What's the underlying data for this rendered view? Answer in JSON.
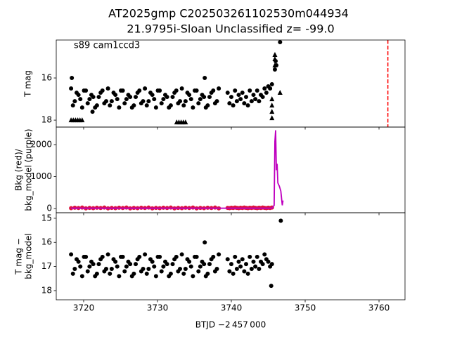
{
  "chart_data": [
    {
      "type": "scatter",
      "title": "AT2025gmp  C202503261102530m044934",
      "subtitle": "21.9795i-Sloan Unclassified z= -99.0",
      "annotation": "s89 cam1ccd3",
      "ylabel": [
        "T mag"
      ],
      "xlim": [
        3716.29,
        3763.52
      ],
      "xticks": [
        3720,
        3730,
        3740,
        3750,
        3760
      ],
      "ylim": [
        18.33,
        14.2
      ],
      "yticks": [
        16,
        18
      ],
      "vline": {
        "x": 3761.2,
        "color": "#ff0000"
      },
      "series": [
        {
          "type": "scatter",
          "marker": "circle",
          "color": "#000000",
          "x": [
            3718.3,
            3718.8,
            3719.3,
            3719.8,
            3720.3,
            3720.8,
            3721.3,
            3721.8,
            3722.3,
            3722.8,
            3723.3,
            3723.8,
            3724.3,
            3724.8,
            3725.3,
            3725.8,
            3726.3,
            3726.8,
            3727.3,
            3727.8,
            3728.3,
            3728.8,
            3729.3,
            3729.8,
            3730.3,
            3730.8,
            3731.3,
            3731.8,
            3732.3,
            3732.8,
            3733.3,
            3733.8,
            3734.3,
            3734.8,
            3735.3,
            3735.8,
            3736.3,
            3736.8,
            3737.3,
            3737.8,
            3738.3,
            3718.55,
            3719.05,
            3719.55,
            3720.05,
            3720.55,
            3721.05,
            3721.55,
            3722.05,
            3722.55,
            3723.05,
            3723.55,
            3724.05,
            3724.55,
            3725.05,
            3725.55,
            3726.05,
            3726.55,
            3727.05,
            3727.55,
            3728.05,
            3728.55,
            3729.05,
            3729.55,
            3730.05,
            3730.55,
            3731.05,
            3731.55,
            3732.05,
            3732.55,
            3733.05,
            3733.55,
            3734.05,
            3734.55,
            3735.05,
            3735.55,
            3736.05,
            3736.55,
            3737.05,
            3737.55,
            3738.05,
            3739.5,
            3739.75,
            3740.0,
            3740.25,
            3740.5,
            3740.75,
            3741.0,
            3741.25,
            3741.5,
            3741.75,
            3742.0,
            3742.25,
            3742.5,
            3742.75,
            3743.0,
            3743.25,
            3743.5,
            3743.75,
            3744.0,
            3744.25,
            3744.5,
            3744.75,
            3745.0,
            3745.25,
            3745.5,
            3718.4,
            3721.2,
            3736.4,
            3745.9,
            3746.0,
            3746.1,
            3746.6
          ],
          "values": [
            16.5,
            17.1,
            16.8,
            17.4,
            16.6,
            17.0,
            16.9,
            17.3,
            16.7,
            17.2,
            16.5,
            17.1,
            16.8,
            17.4,
            16.6,
            17.0,
            16.9,
            17.3,
            16.7,
            17.2,
            16.5,
            17.1,
            16.8,
            17.4,
            16.6,
            17.0,
            16.9,
            17.3,
            16.7,
            17.2,
            16.5,
            17.1,
            16.8,
            17.4,
            16.6,
            17.0,
            16.9,
            17.3,
            16.7,
            17.2,
            16.5,
            17.3,
            16.7,
            17.0,
            16.6,
            17.2,
            16.8,
            17.4,
            16.9,
            16.6,
            17.1,
            17.3,
            16.7,
            17.0,
            16.6,
            17.2,
            16.8,
            17.4,
            16.9,
            16.6,
            17.1,
            17.3,
            16.7,
            17.0,
            16.6,
            17.2,
            16.8,
            17.4,
            16.9,
            16.6,
            17.1,
            17.3,
            16.7,
            17.0,
            16.6,
            17.2,
            16.8,
            17.4,
            16.9,
            16.6,
            17.1,
            16.7,
            17.2,
            16.9,
            17.3,
            16.6,
            17.1,
            16.8,
            17.0,
            16.7,
            17.2,
            16.9,
            17.3,
            16.6,
            17.1,
            16.8,
            17.0,
            16.6,
            17.1,
            16.8,
            16.9,
            16.5,
            16.7,
            16.4,
            16.5,
            16.3,
            16.0,
            17.6,
            16.0,
            15.6,
            15.2,
            15.4,
            14.3
          ]
        },
        {
          "type": "scatter",
          "marker": "triangle",
          "color": "#000000",
          "x": [
            3718.3,
            3718.6,
            3718.9,
            3719.2,
            3719.5,
            3719.8,
            3732.6,
            3732.9,
            3733.2,
            3733.5,
            3733.8,
            3745.5,
            3745.5,
            3745.5,
            3745.5,
            3745.9,
            3745.9,
            3745.9,
            3746.6
          ],
          "values": [
            18.0,
            18.0,
            18.0,
            18.0,
            18.0,
            18.0,
            18.1,
            18.1,
            18.1,
            18.1,
            18.1,
            17.9,
            17.6,
            17.3,
            17.0,
            15.4,
            15.1,
            14.9,
            16.7
          ]
        }
      ]
    },
    {
      "type": "scatter",
      "ylabel": [
        "Bkg (red)/",
        "bkg_model (purple)"
      ],
      "xlim": [
        3716.29,
        3763.52
      ],
      "xticks": [
        3720,
        3730,
        3740,
        3750,
        3760
      ],
      "ylim": [
        -132,
        2549
      ],
      "yticks": [
        0,
        1000,
        2000
      ],
      "series": [
        {
          "type": "scatter",
          "marker": "circle",
          "color": "#dc143c",
          "x": [
            3718.3,
            3718.8,
            3719.3,
            3719.8,
            3720.3,
            3720.8,
            3721.3,
            3721.8,
            3722.3,
            3722.8,
            3723.3,
            3723.8,
            3724.3,
            3724.8,
            3725.3,
            3725.8,
            3726.3,
            3726.8,
            3727.3,
            3727.8,
            3728.3,
            3728.8,
            3729.3,
            3729.8,
            3730.3,
            3730.8,
            3731.3,
            3731.8,
            3732.3,
            3732.8,
            3733.3,
            3733.8,
            3734.3,
            3734.8,
            3735.3,
            3735.8,
            3736.3,
            3736.8,
            3737.3,
            3737.8,
            3738.3,
            3739.5,
            3739.75,
            3740.0,
            3740.25,
            3740.5,
            3740.75,
            3741.0,
            3741.25,
            3741.5,
            3741.75,
            3742.0,
            3742.25,
            3742.5,
            3742.75,
            3743.0,
            3743.25,
            3743.5,
            3743.75,
            3744.0,
            3744.25,
            3744.5,
            3744.75,
            3745.0,
            3745.25,
            3745.5
          ],
          "values": [
            10,
            25,
            15,
            30,
            5,
            20,
            10,
            25,
            15,
            30,
            5,
            20,
            10,
            25,
            15,
            30,
            5,
            20,
            10,
            25,
            15,
            30,
            5,
            20,
            10,
            25,
            15,
            30,
            5,
            20,
            10,
            25,
            15,
            30,
            5,
            20,
            10,
            25,
            15,
            30,
            5,
            20,
            10,
            25,
            15,
            30,
            20,
            10,
            25,
            15,
            30,
            20,
            10,
            25,
            15,
            30,
            20,
            10,
            25,
            15,
            30,
            20,
            10,
            25,
            15,
            30
          ]
        },
        {
          "type": "line",
          "color": "#bf00bf",
          "x": [
            3718.3,
            3738.3,
            3739.5,
            3745.5,
            3745.8,
            3745.9,
            3746.0,
            3746.1,
            3746.2,
            3746.3,
            3746.5,
            3746.7,
            3746.9,
            3747.0
          ],
          "values": [
            10,
            10,
            10,
            10,
            100,
            2100,
            2450,
            1200,
            1400,
            800,
            700,
            550,
            100,
            250
          ]
        }
      ]
    },
    {
      "type": "scatter",
      "ylabel": [
        "T mag −",
        "bkg_model"
      ],
      "xlabel": "BTJD −2 457 000",
      "xlim": [
        3716.29,
        3763.52
      ],
      "xticks": [
        3720,
        3730,
        3740,
        3750,
        3760
      ],
      "ylim": [
        18.38,
        14.77
      ],
      "yticks": [
        15,
        16,
        17,
        18
      ],
      "series": [
        {
          "type": "scatter",
          "marker": "circle",
          "color": "#000000",
          "x": [
            3718.3,
            3718.8,
            3719.3,
            3719.8,
            3720.3,
            3720.8,
            3721.3,
            3721.8,
            3722.3,
            3722.8,
            3723.3,
            3723.8,
            3724.3,
            3724.8,
            3725.3,
            3725.8,
            3726.3,
            3726.8,
            3727.3,
            3727.8,
            3728.3,
            3728.8,
            3729.3,
            3729.8,
            3730.3,
            3730.8,
            3731.3,
            3731.8,
            3732.3,
            3732.8,
            3733.3,
            3733.8,
            3734.3,
            3734.8,
            3735.3,
            3735.8,
            3736.3,
            3736.8,
            3737.3,
            3737.8,
            3738.3,
            3718.55,
            3719.05,
            3719.55,
            3720.05,
            3720.55,
            3721.05,
            3721.55,
            3722.05,
            3722.55,
            3723.05,
            3723.55,
            3724.05,
            3724.55,
            3725.05,
            3725.55,
            3726.05,
            3726.55,
            3727.05,
            3727.55,
            3728.05,
            3728.55,
            3729.05,
            3729.55,
            3730.05,
            3730.55,
            3731.05,
            3731.55,
            3732.05,
            3732.55,
            3733.05,
            3733.55,
            3734.05,
            3734.55,
            3735.05,
            3735.55,
            3736.05,
            3736.55,
            3737.05,
            3737.55,
            3738.05,
            3739.5,
            3739.75,
            3740.0,
            3740.25,
            3740.5,
            3740.75,
            3741.0,
            3741.25,
            3741.5,
            3741.75,
            3742.0,
            3742.25,
            3742.5,
            3742.75,
            3743.0,
            3743.25,
            3743.5,
            3743.75,
            3744.0,
            3744.25,
            3744.5,
            3744.75,
            3745.0,
            3745.25,
            3745.5,
            3736.4,
            3745.4,
            3746.7
          ],
          "values": [
            16.5,
            17.1,
            16.8,
            17.4,
            16.6,
            17.0,
            16.9,
            17.3,
            16.7,
            17.2,
            16.5,
            17.1,
            16.8,
            17.4,
            16.6,
            17.0,
            16.9,
            17.3,
            16.7,
            17.2,
            16.5,
            17.1,
            16.8,
            17.4,
            16.6,
            17.0,
            16.9,
            17.3,
            16.7,
            17.2,
            16.5,
            17.1,
            16.8,
            17.4,
            16.6,
            17.0,
            16.9,
            17.3,
            16.7,
            17.2,
            16.5,
            17.3,
            16.7,
            17.0,
            16.6,
            17.2,
            16.8,
            17.4,
            16.9,
            16.6,
            17.1,
            17.3,
            16.7,
            17.0,
            16.6,
            17.2,
            16.8,
            17.4,
            16.9,
            16.6,
            17.1,
            17.3,
            16.7,
            17.0,
            16.6,
            17.2,
            16.8,
            17.4,
            16.9,
            16.6,
            17.1,
            17.3,
            16.7,
            17.0,
            16.6,
            17.2,
            16.8,
            17.4,
            16.9,
            16.6,
            17.1,
            16.7,
            17.2,
            16.9,
            17.3,
            16.6,
            17.1,
            16.8,
            17.0,
            16.7,
            17.2,
            16.9,
            17.3,
            16.6,
            17.1,
            16.8,
            17.0,
            16.6,
            17.1,
            16.8,
            16.9,
            16.5,
            16.7,
            16.8,
            17.0,
            16.9,
            16.0,
            17.8,
            15.1
          ]
        }
      ]
    }
  ]
}
